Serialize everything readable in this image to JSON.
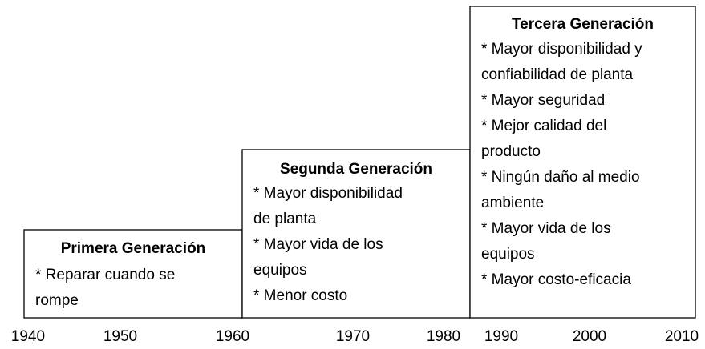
{
  "boxes": [
    {
      "title": "Primera Generación",
      "lines": [
        "* Reparar cuando se",
        "rompe"
      ]
    },
    {
      "title": "Segunda Generación",
      "lines": [
        "*  Mayor disponibilidad",
        "de planta",
        "*  Mayor vida de los",
        "equipos",
        "*  Menor costo"
      ]
    },
    {
      "title": "Tercera Generación",
      "lines": [
        "* Mayor disponibilidad y",
        "confiabilidad de planta",
        "* Mayor seguridad",
        "* Mejor calidad del",
        "producto",
        "* Ningún daño al medio",
        "ambiente",
        "* Mayor vida de los",
        "equipos",
        "* Mayor costo-eficacia"
      ]
    }
  ],
  "years": [
    1940,
    1950,
    1960,
    1970,
    1980,
    1990,
    2000,
    2010
  ]
}
